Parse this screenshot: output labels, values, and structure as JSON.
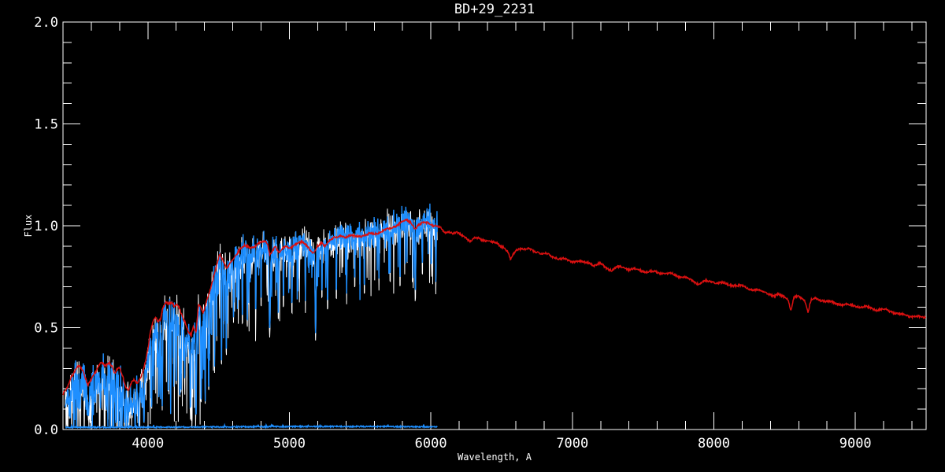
{
  "window": {
    "background": "#000000"
  },
  "chart_data": {
    "type": "line",
    "title": "BD+29_2231",
    "xlabel": "Wavelength, A",
    "ylabel": "Flux",
    "xlim": [
      3400,
      9500
    ],
    "ylim": [
      0.0,
      2.0
    ],
    "x_major_ticks": [
      4000,
      5000,
      6000,
      7000,
      8000,
      9000
    ],
    "x_tick_labels": [
      "4000",
      "5000",
      "6000",
      "7000",
      "8000",
      "9000"
    ],
    "x_minor_step": 200,
    "y_major_ticks": [
      0.0,
      0.5,
      1.0,
      1.5,
      2.0
    ],
    "y_tick_labels": [
      "0.0",
      "0.5",
      "1.0",
      "1.5",
      "2.0"
    ],
    "y_minor_step": 0.1,
    "grid": false,
    "legend": null,
    "colors": {
      "background": "#000000",
      "axis": "#ffffff",
      "observed_raw": "#ffffff",
      "observed": "#1e8fff",
      "template": "#da1010",
      "error": "#1e8fff"
    },
    "series": [
      {
        "name": "observed-spectrum-raw",
        "role": "observed_underlay",
        "color": "#ffffff",
        "range": [
          3415,
          6045
        ],
        "seed": 101
      },
      {
        "name": "observed-spectrum",
        "role": "observed",
        "color": "#1e8fff",
        "range": [
          3417,
          6045
        ],
        "seed": 202
      },
      {
        "name": "template-spectrum",
        "role": "template",
        "color": "#da1010",
        "range": [
          3400,
          9500
        ],
        "seed": 7
      },
      {
        "name": "error-spectrum",
        "role": "error",
        "color": "#1e8fff",
        "range": [
          3417,
          6045
        ],
        "seed": 55,
        "level": 0.011
      }
    ],
    "template_anchors": [
      [
        3400,
        0.17
      ],
      [
        3430,
        0.2
      ],
      [
        3460,
        0.26
      ],
      [
        3490,
        0.3
      ],
      [
        3515,
        0.32
      ],
      [
        3545,
        0.28
      ],
      [
        3575,
        0.22
      ],
      [
        3605,
        0.26
      ],
      [
        3640,
        0.3
      ],
      [
        3670,
        0.33
      ],
      [
        3700,
        0.31
      ],
      [
        3728,
        0.33
      ],
      [
        3748,
        0.31
      ],
      [
        3765,
        0.27
      ],
      [
        3782,
        0.29
      ],
      [
        3800,
        0.3
      ],
      [
        3820,
        0.26
      ],
      [
        3840,
        0.21
      ],
      [
        3862,
        0.19
      ],
      [
        3883,
        0.23
      ],
      [
        3903,
        0.24
      ],
      [
        3923,
        0.22
      ],
      [
        3943,
        0.24
      ],
      [
        3963,
        0.28
      ],
      [
        3983,
        0.34
      ],
      [
        4000,
        0.4
      ],
      [
        4015,
        0.47
      ],
      [
        4035,
        0.53
      ],
      [
        4055,
        0.55
      ],
      [
        4072,
        0.53
      ],
      [
        4088,
        0.545
      ],
      [
        4105,
        0.6
      ],
      [
        4125,
        0.63
      ],
      [
        4150,
        0.62
      ],
      [
        4172,
        0.62
      ],
      [
        4188,
        0.6
      ],
      [
        4205,
        0.615
      ],
      [
        4220,
        0.6
      ],
      [
        4242,
        0.56
      ],
      [
        4265,
        0.52
      ],
      [
        4288,
        0.47
      ],
      [
        4306,
        0.455
      ],
      [
        4322,
        0.5
      ],
      [
        4340,
        0.47
      ],
      [
        4358,
        0.62
      ],
      [
        4372,
        0.6
      ],
      [
        4390,
        0.57
      ],
      [
        4412,
        0.62
      ],
      [
        4440,
        0.68
      ],
      [
        4468,
        0.76
      ],
      [
        4492,
        0.83
      ],
      [
        4508,
        0.865
      ],
      [
        4530,
        0.835
      ],
      [
        4556,
        0.79
      ],
      [
        4582,
        0.82
      ],
      [
        4612,
        0.85
      ],
      [
        4648,
        0.885
      ],
      [
        4685,
        0.9
      ],
      [
        4722,
        0.89
      ],
      [
        4760,
        0.9
      ],
      [
        4800,
        0.915
      ],
      [
        4832,
        0.92
      ],
      [
        4848,
        0.9
      ],
      [
        4861,
        0.855
      ],
      [
        4878,
        0.875
      ],
      [
        4898,
        0.9
      ],
      [
        4915,
        0.88
      ],
      [
        4933,
        0.865
      ],
      [
        4955,
        0.89
      ],
      [
        4978,
        0.905
      ],
      [
        5000,
        0.895
      ],
      [
        5030,
        0.905
      ],
      [
        5060,
        0.915
      ],
      [
        5090,
        0.925
      ],
      [
        5118,
        0.915
      ],
      [
        5145,
        0.885
      ],
      [
        5172,
        0.86
      ],
      [
        5198,
        0.895
      ],
      [
        5228,
        0.915
      ],
      [
        5252,
        0.9
      ],
      [
        5280,
        0.92
      ],
      [
        5318,
        0.935
      ],
      [
        5358,
        0.95
      ],
      [
        5398,
        0.945
      ],
      [
        5438,
        0.95
      ],
      [
        5478,
        0.955
      ],
      [
        5518,
        0.955
      ],
      [
        5558,
        0.96
      ],
      [
        5598,
        0.965
      ],
      [
        5638,
        0.97
      ],
      [
        5678,
        0.975
      ],
      [
        5718,
        0.985
      ],
      [
        5758,
        1.0
      ],
      [
        5798,
        1.015
      ],
      [
        5828,
        1.025
      ],
      [
        5858,
        1.015
      ],
      [
        5888,
        0.99
      ],
      [
        5918,
        1.005
      ],
      [
        5948,
        1.015
      ],
      [
        5978,
        1.02
      ],
      [
        6008,
        1.01
      ],
      [
        6038,
        1.0
      ],
      [
        6068,
        0.99
      ],
      [
        6098,
        0.97
      ],
      [
        6128,
        0.975
      ],
      [
        6158,
        0.96
      ],
      [
        6188,
        0.96
      ],
      [
        6218,
        0.95
      ],
      [
        6248,
        0.94
      ],
      [
        6278,
        0.92
      ],
      [
        6308,
        0.935
      ],
      [
        6338,
        0.935
      ],
      [
        6368,
        0.93
      ],
      [
        6398,
        0.93
      ],
      [
        6428,
        0.92
      ],
      [
        6458,
        0.92
      ],
      [
        6488,
        0.91
      ],
      [
        6518,
        0.9
      ],
      [
        6542,
        0.875
      ],
      [
        6563,
        0.835
      ],
      [
        6582,
        0.86
      ],
      [
        6608,
        0.885
      ],
      [
        6638,
        0.89
      ],
      [
        6668,
        0.88
      ],
      [
        6698,
        0.88
      ],
      [
        6728,
        0.87
      ],
      [
        6758,
        0.87
      ],
      [
        6788,
        0.86
      ],
      [
        6818,
        0.86
      ],
      [
        6848,
        0.85
      ],
      [
        6878,
        0.85
      ],
      [
        6908,
        0.84
      ],
      [
        6938,
        0.84
      ],
      [
        6968,
        0.835
      ],
      [
        7000,
        0.83
      ],
      [
        7040,
        0.83
      ],
      [
        7080,
        0.82
      ],
      [
        7120,
        0.82
      ],
      [
        7158,
        0.8
      ],
      [
        7198,
        0.81
      ],
      [
        7238,
        0.79
      ],
      [
        7278,
        0.78
      ],
      [
        7318,
        0.795
      ],
      [
        7358,
        0.8
      ],
      [
        7398,
        0.79
      ],
      [
        7438,
        0.79
      ],
      [
        7478,
        0.785
      ],
      [
        7518,
        0.78
      ],
      [
        7558,
        0.775
      ],
      [
        7598,
        0.77
      ],
      [
        7648,
        0.765
      ],
      [
        7698,
        0.76
      ],
      [
        7748,
        0.75
      ],
      [
        7798,
        0.745
      ],
      [
        7848,
        0.73
      ],
      [
        7888,
        0.72
      ],
      [
        7928,
        0.73
      ],
      [
        7968,
        0.73
      ],
      [
        8008,
        0.725
      ],
      [
        8048,
        0.72
      ],
      [
        8098,
        0.71
      ],
      [
        8148,
        0.705
      ],
      [
        8198,
        0.7
      ],
      [
        8248,
        0.69
      ],
      [
        8298,
        0.685
      ],
      [
        8348,
        0.68
      ],
      [
        8398,
        0.67
      ],
      [
        8428,
        0.655
      ],
      [
        8458,
        0.665
      ],
      [
        8498,
        0.655
      ],
      [
        8525,
        0.64
      ],
      [
        8545,
        0.585
      ],
      [
        8565,
        0.645
      ],
      [
        8598,
        0.65
      ],
      [
        8642,
        0.635
      ],
      [
        8665,
        0.575
      ],
      [
        8688,
        0.63
      ],
      [
        8722,
        0.64
      ],
      [
        8758,
        0.635
      ],
      [
        8798,
        0.63
      ],
      [
        8848,
        0.625
      ],
      [
        8898,
        0.62
      ],
      [
        8948,
        0.615
      ],
      [
        8998,
        0.61
      ],
      [
        9048,
        0.6
      ],
      [
        9098,
        0.595
      ],
      [
        9148,
        0.585
      ],
      [
        9198,
        0.585
      ],
      [
        9248,
        0.58
      ],
      [
        9298,
        0.57
      ],
      [
        9348,
        0.565
      ],
      [
        9398,
        0.56
      ],
      [
        9448,
        0.555
      ],
      [
        9500,
        0.55
      ]
    ],
    "absorption_lines": [
      [
        3445,
        0.05,
        6
      ],
      [
        3475,
        0.1,
        5
      ],
      [
        3520,
        0.08,
        6
      ],
      [
        3580,
        0.05,
        9
      ],
      [
        3620,
        0.12,
        6
      ],
      [
        3665,
        0.1,
        7
      ],
      [
        3705,
        0.08,
        7
      ],
      [
        3735,
        0.06,
        6
      ],
      [
        3770,
        0.12,
        6
      ],
      [
        3798,
        0.08,
        7
      ],
      [
        3835,
        0.03,
        8
      ],
      [
        3870,
        0.08,
        6
      ],
      [
        3889,
        0.05,
        7
      ],
      [
        3912,
        0.1,
        5
      ],
      [
        3934,
        0.03,
        8
      ],
      [
        3972,
        0.02,
        7
      ],
      [
        4026,
        0.08,
        6
      ],
      [
        4078,
        0.12,
        5
      ],
      [
        4101,
        0.1,
        7
      ],
      [
        4144,
        0.15,
        5
      ],
      [
        4161,
        0.07,
        5
      ],
      [
        4200,
        0.2,
        5
      ],
      [
        4226,
        0.12,
        5
      ],
      [
        4234,
        0.13,
        4
      ],
      [
        4260,
        0.22,
        5
      ],
      [
        4300,
        0.07,
        6
      ],
      [
        4340,
        0.05,
        7
      ],
      [
        4376,
        0.1,
        5
      ],
      [
        4405,
        0.12,
        5
      ],
      [
        4430,
        0.16,
        5
      ],
      [
        4471,
        0.3,
        5
      ],
      [
        4520,
        0.28,
        5
      ],
      [
        4554,
        0.35,
        5
      ],
      [
        4605,
        0.55,
        5
      ],
      [
        4668,
        0.52,
        5
      ],
      [
        4702,
        0.5,
        5
      ],
      [
        4762,
        0.55,
        5
      ],
      [
        4800,
        0.6,
        4
      ],
      [
        4861,
        0.48,
        10
      ],
      [
        4922,
        0.55,
        6
      ],
      [
        4958,
        0.62,
        5
      ],
      [
        5018,
        0.58,
        5
      ],
      [
        5113,
        0.62,
        4
      ],
      [
        5185,
        0.46,
        8
      ],
      [
        5230,
        0.64,
        4
      ],
      [
        5270,
        0.6,
        5
      ],
      [
        5332,
        0.63,
        4
      ],
      [
        5405,
        0.66,
        4
      ],
      [
        5462,
        0.7,
        4
      ],
      [
        5530,
        0.66,
        4
      ],
      [
        5633,
        0.74,
        4
      ],
      [
        5712,
        0.72,
        4
      ],
      [
        5782,
        0.7,
        4
      ],
      [
        5875,
        0.74,
        4
      ],
      [
        5890,
        0.66,
        7
      ],
      [
        5940,
        0.78,
        4
      ],
      [
        6005,
        0.8,
        4
      ],
      [
        6035,
        0.72,
        5
      ]
    ],
    "noise": {
      "offset_anchors": [
        [
          3400,
          -0.05
        ],
        [
          3700,
          -0.05
        ],
        [
          3900,
          -0.06
        ],
        [
          4100,
          -0.06
        ],
        [
          4300,
          -0.05
        ],
        [
          4500,
          -0.04
        ],
        [
          4700,
          -0.03
        ],
        [
          4900,
          -0.015
        ],
        [
          5100,
          -0.01
        ],
        [
          5400,
          0.0
        ],
        [
          5700,
          0.005
        ],
        [
          6050,
          0.0
        ]
      ],
      "amp_anchors": [
        [
          3400,
          0.05
        ],
        [
          3800,
          0.055
        ],
        [
          4100,
          0.055
        ],
        [
          4400,
          0.05
        ],
        [
          4700,
          0.045
        ],
        [
          5000,
          0.04
        ],
        [
          5400,
          0.038
        ],
        [
          5800,
          0.042
        ],
        [
          6050,
          0.045
        ]
      ],
      "spike_prob_anchors": [
        [
          3400,
          0.3
        ],
        [
          4300,
          0.28
        ],
        [
          4600,
          0.22
        ],
        [
          5000,
          0.2
        ],
        [
          6050,
          0.16
        ]
      ],
      "spike_max_anchors": [
        [
          3400,
          0.3
        ],
        [
          3900,
          0.4
        ],
        [
          4300,
          0.42
        ],
        [
          4600,
          0.3
        ],
        [
          5000,
          0.28
        ],
        [
          6050,
          0.24
        ]
      ]
    }
  }
}
